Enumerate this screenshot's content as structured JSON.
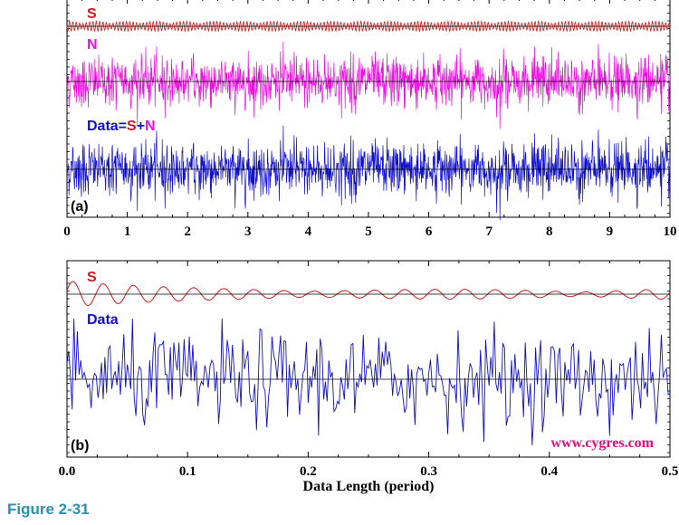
{
  "figure_caption": "Figure 2-31",
  "colors": {
    "signal": "#d11a1a",
    "noise": "#ee10e0",
    "data": "#1010d0",
    "axis": "#000000",
    "watermark": "#e0107a",
    "caption": "#2a8fb0"
  },
  "chart_data": [
    {
      "id": "panel-a",
      "type": "line",
      "panel_label": "(a)",
      "xlim": [
        0,
        10
      ],
      "x_ticks": [
        "0",
        "1",
        "2",
        "3",
        "4",
        "5",
        "6",
        "7",
        "8",
        "9",
        "10"
      ],
      "xlabel": "",
      "grid": false,
      "series": [
        {
          "name": "S",
          "style": "dense oscillation with slowly varying envelope",
          "relative_amplitude": 0.1
        },
        {
          "name": "N",
          "style": "broadband random noise",
          "relative_amplitude": 1.0
        },
        {
          "name": "Data=S+N",
          "style": "signal plus noise",
          "relative_amplitude": 1.0
        }
      ],
      "legend_labels": {
        "s": "S",
        "n": "N",
        "data_prefix": "Data=",
        "data_s": "S",
        "data_plus": "+",
        "data_n": "N"
      }
    },
    {
      "id": "panel-b",
      "type": "line",
      "panel_label": "(b)",
      "xlim": [
        0.0,
        0.5
      ],
      "x_ticks": [
        "0.0",
        "0.1",
        "0.2",
        "0.3",
        "0.4",
        "0.5"
      ],
      "xlabel": "Data Length (period)",
      "grid": false,
      "watermark": "www.cygres.com",
      "series": [
        {
          "name": "S",
          "style": "damped sinusoid with beat envelope",
          "cycles_in_view": 20
        },
        {
          "name": "Data",
          "style": "noisy signal, zoomed in",
          "relative_amplitude": 1.0
        }
      ]
    }
  ]
}
